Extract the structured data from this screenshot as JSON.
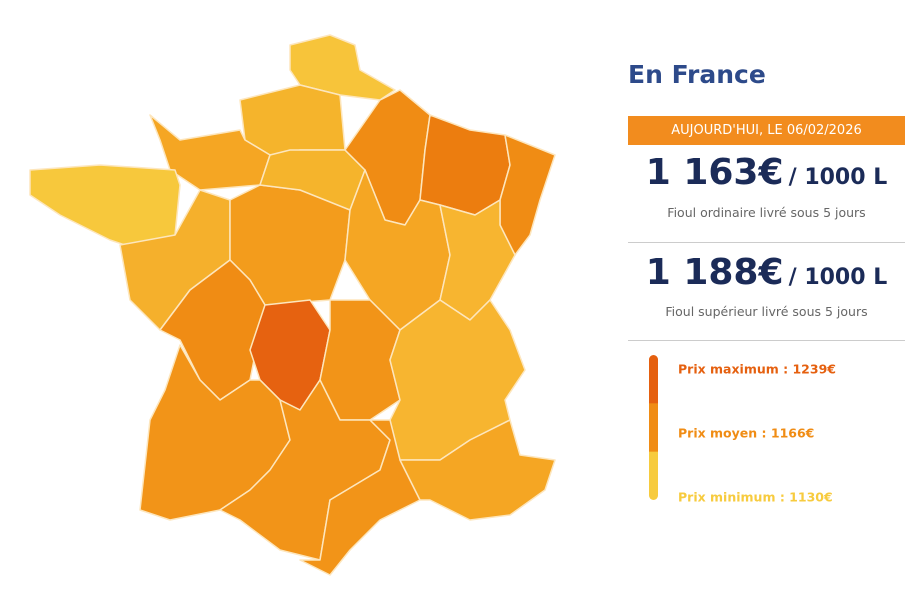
{
  "header": {
    "title": "En France",
    "date_badge": "AUJOURD'HUI, LE 06/02/2026"
  },
  "prices": [
    {
      "price": "1 163€",
      "unit": "/ 1000 L",
      "description": "Fioul ordinaire livré sous 5 jours"
    },
    {
      "price": "1 188€",
      "unit": "/ 1000 L",
      "description": "Fioul supérieur livré sous 5 jours"
    }
  ],
  "legend": [
    {
      "label": "Prix maximum : 1239€",
      "color": "#e5600f"
    },
    {
      "label": "Prix moyen : 1166€",
      "color": "#f08c14"
    },
    {
      "label": "Prix minimum : 1130€",
      "color": "#f7cb3e"
    }
  ]
}
